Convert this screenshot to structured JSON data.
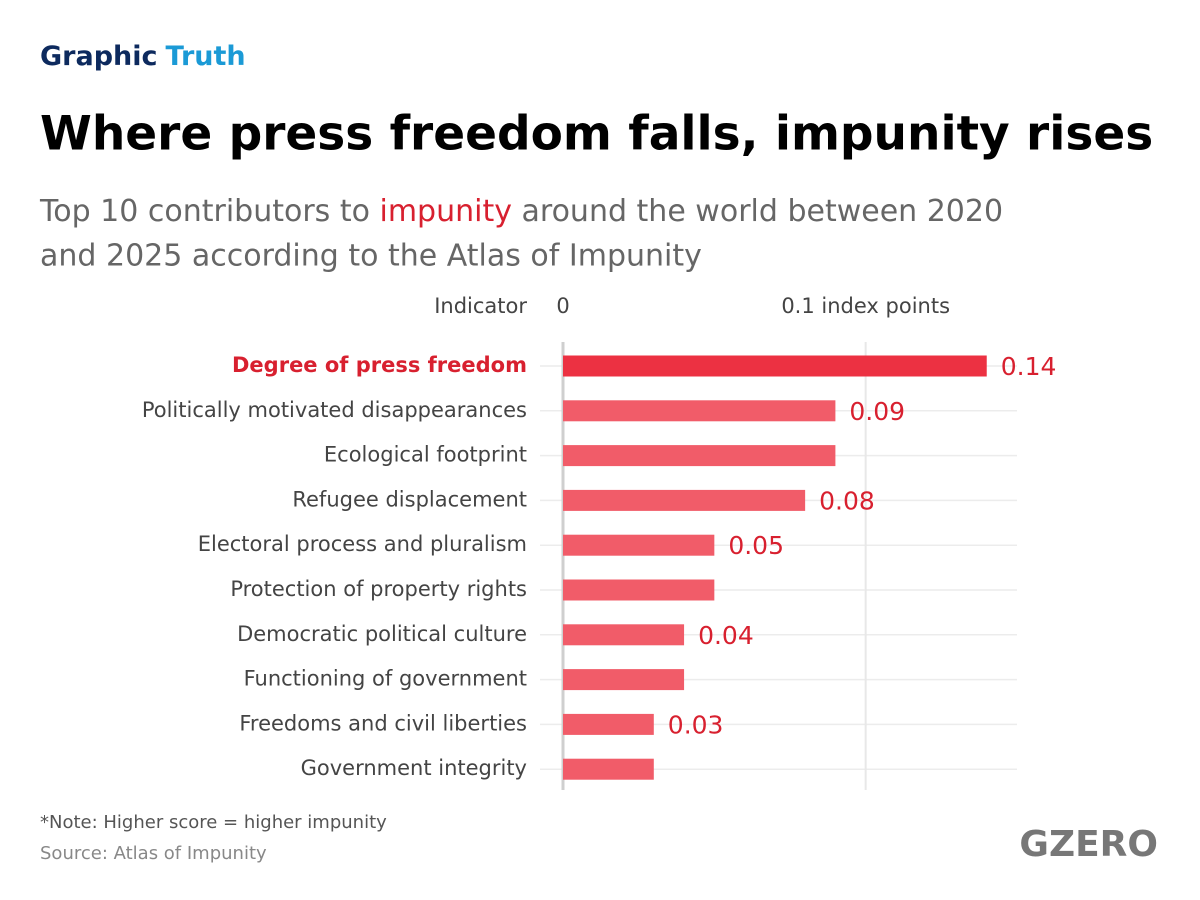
{
  "brand": [
    "Graphic",
    "Truth"
  ],
  "chart_data": {
    "type": "hbar",
    "title": "Where press freedom falls, impunity rises",
    "subtitle": [
      "Top 10 contributors to ",
      "impunity",
      " around the world between 2020",
      "and 2025 according to the Atlas of Impunity"
    ],
    "category_header": "Indicator",
    "categories": [
      "Degree of press freedom",
      "Politically motivated disappearances",
      "Ecological footprint",
      "Refugee displacement",
      "Electoral process and pluralism",
      "Protection of property rights",
      "Democratic political culture",
      "Functioning of government",
      "Freedoms and civil liberties",
      "Government integrity"
    ],
    "values": [
      0.14,
      0.09,
      0.09,
      0.08,
      0.05,
      0.05,
      0.04,
      0.04,
      0.03,
      0.03
    ],
    "value_labels": [
      "0.14",
      "0.09",
      null,
      "0.08",
      "0.05",
      null,
      "0.04",
      null,
      "0.03",
      null
    ],
    "color": "#f15c69",
    "highlight": [
      0
    ],
    "highlight_color": "#ec3142",
    "xlim": [
      0,
      0.15
    ],
    "xticks": [
      0,
      {
        "value": 0.1,
        "label": "0.1 index points"
      }
    ],
    "grid": true,
    "note": "*Note: Higher score = higher impunity",
    "source": "Source: Atlas of Impunity"
  },
  "logo": "GZERO"
}
